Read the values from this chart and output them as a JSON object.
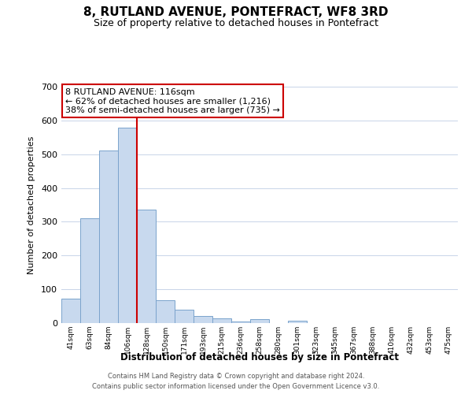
{
  "title": "8, RUTLAND AVENUE, PONTEFRACT, WF8 3RD",
  "subtitle": "Size of property relative to detached houses in Pontefract",
  "xlabel": "Distribution of detached houses by size in Pontefract",
  "ylabel": "Number of detached properties",
  "bar_labels": [
    "41sqm",
    "63sqm",
    "84sqm",
    "106sqm",
    "128sqm",
    "150sqm",
    "171sqm",
    "193sqm",
    "215sqm",
    "236sqm",
    "258sqm",
    "280sqm",
    "301sqm",
    "323sqm",
    "345sqm",
    "367sqm",
    "388sqm",
    "410sqm",
    "432sqm",
    "453sqm",
    "475sqm"
  ],
  "bar_values": [
    72,
    310,
    510,
    578,
    335,
    68,
    40,
    20,
    15,
    5,
    12,
    0,
    8,
    0,
    0,
    0,
    0,
    0,
    0,
    0,
    0
  ],
  "bar_color": "#c8d9ee",
  "bar_edge_color": "#7aa3cc",
  "vline_x": 3.5,
  "vline_color": "#cc0000",
  "annotation_title": "8 RUTLAND AVENUE: 116sqm",
  "annotation_line1": "← 62% of detached houses are smaller (1,216)",
  "annotation_line2": "38% of semi-detached houses are larger (735) →",
  "annotation_box_color": "#ffffff",
  "annotation_box_edge": "#cc0000",
  "ylim": [
    0,
    700
  ],
  "yticks": [
    0,
    100,
    200,
    300,
    400,
    500,
    600,
    700
  ],
  "footer_line1": "Contains HM Land Registry data © Crown copyright and database right 2024.",
  "footer_line2": "Contains public sector information licensed under the Open Government Licence v3.0.",
  "bg_color": "#ffffff",
  "grid_color": "#c8d4e8"
}
